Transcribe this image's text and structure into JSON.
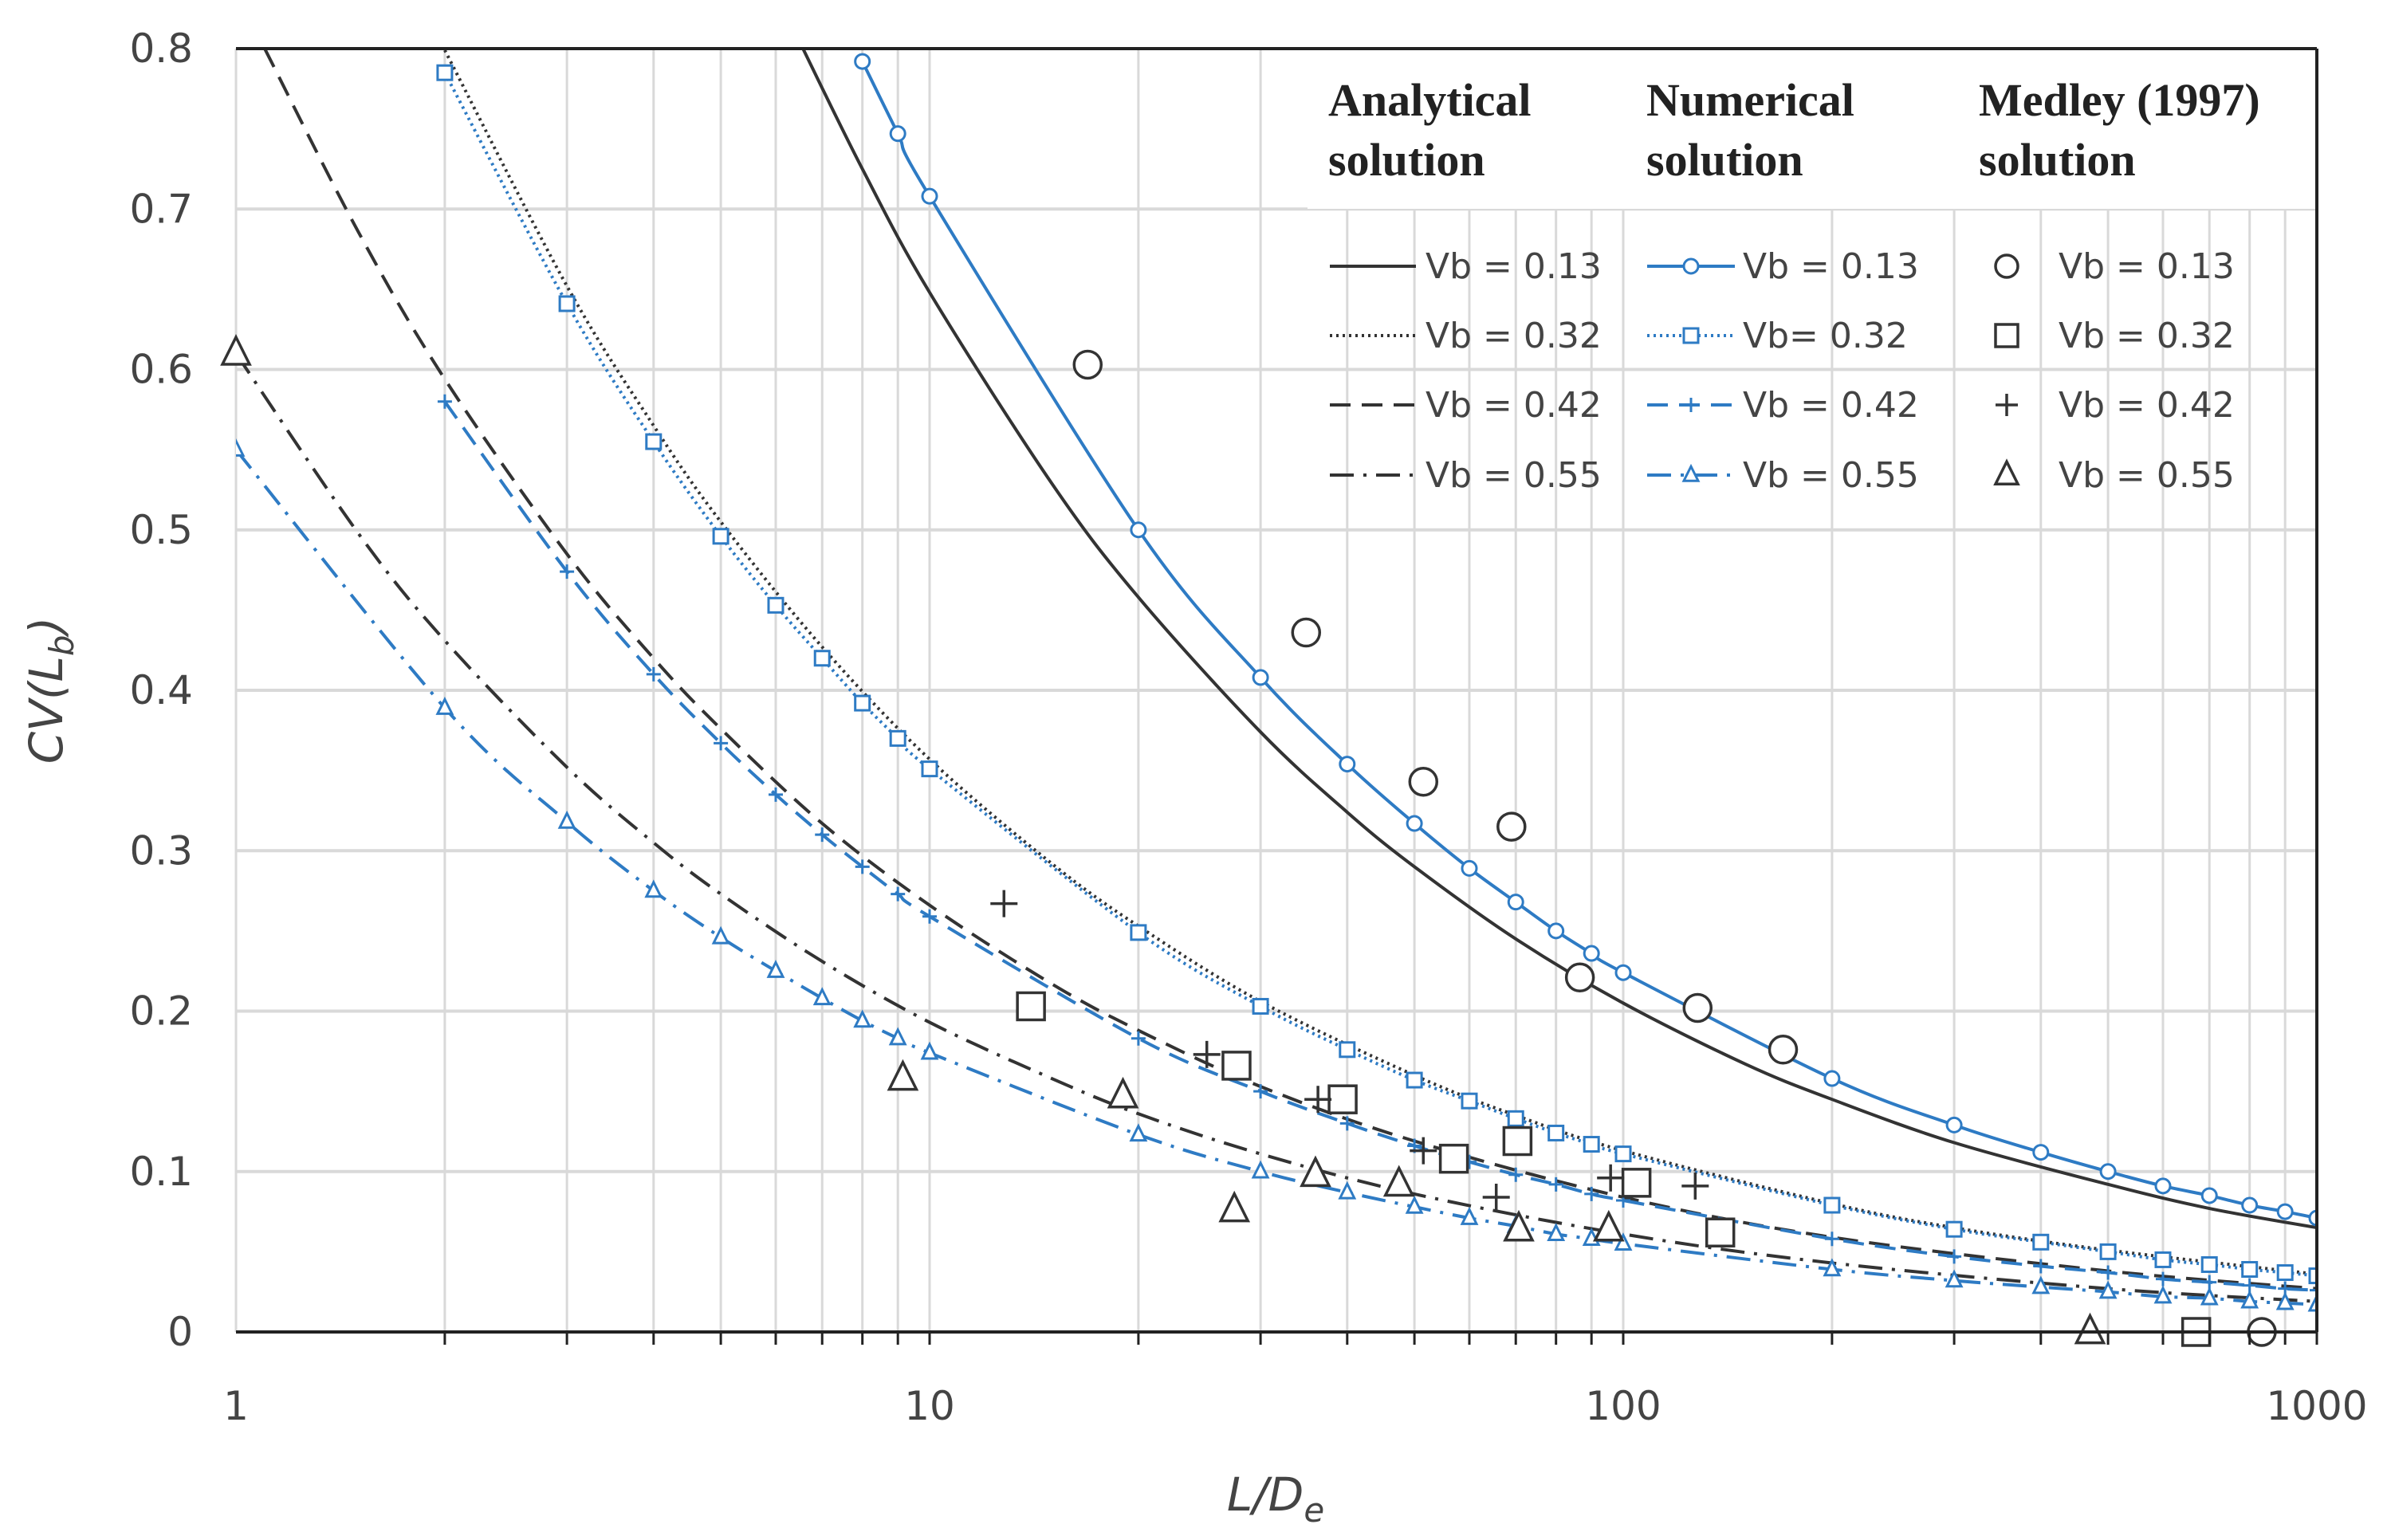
{
  "chart_data": {
    "type": "line",
    "xscale": "log",
    "xlim": [
      1,
      1000
    ],
    "ylim": [
      0,
      0.8
    ],
    "grid": true,
    "legend_position": "top-right",
    "xlabel_parts": {
      "main": "L/D",
      "sub": "e"
    },
    "ylabel_parts": {
      "main": "CV(L",
      "sub": "b",
      "close": ")"
    },
    "xticks": [
      {
        "v": 1,
        "label": "1"
      },
      {
        "v": 10,
        "label": "10"
      },
      {
        "v": 100,
        "label": "100"
      },
      {
        "v": 1000,
        "label": "1000"
      }
    ],
    "yticks": [
      {
        "v": 0,
        "label": "0"
      },
      {
        "v": 0.1,
        "label": "0.1"
      },
      {
        "v": 0.2,
        "label": "0.2"
      },
      {
        "v": 0.3,
        "label": "0.3"
      },
      {
        "v": 0.4,
        "label": "0.4"
      },
      {
        "v": 0.5,
        "label": "0.5"
      },
      {
        "v": 0.6,
        "label": "0.6"
      },
      {
        "v": 0.7,
        "label": "0.7"
      },
      {
        "v": 0.8,
        "label": "0.8"
      }
    ],
    "colors": {
      "analytical": "#333333",
      "numerical": "#2e7bc4",
      "medley": "#333333"
    },
    "legend_groups": [
      {
        "title_line1": "Analytical",
        "title_line2": "solution"
      },
      {
        "title_line1": "Numerical",
        "title_line2": "solution"
      },
      {
        "title_line1": "Medley (1997)",
        "title_line2": "solution"
      }
    ],
    "analytical": [
      {
        "name": "Vb = 0.13",
        "dash": "solid",
        "x": [
          6.5,
          8,
          10,
          15,
          20,
          30,
          40,
          50,
          70,
          100,
          150,
          200,
          300,
          500,
          700,
          1000
        ],
        "y": [
          0.804,
          0.725,
          0.648,
          0.529,
          0.458,
          0.374,
          0.324,
          0.29,
          0.245,
          0.205,
          0.167,
          0.145,
          0.118,
          0.092,
          0.077,
          0.065
        ]
      },
      {
        "name": "Vb = 0.32",
        "dash": "dotted",
        "x": [
          2,
          3,
          4,
          5,
          7,
          10,
          15,
          20,
          30,
          50,
          70,
          100,
          200,
          300,
          500,
          1000
        ],
        "y": [
          0.799,
          0.652,
          0.565,
          0.505,
          0.427,
          0.357,
          0.292,
          0.253,
          0.206,
          0.16,
          0.135,
          0.113,
          0.08,
          0.065,
          0.051,
          0.036
        ]
      },
      {
        "name": "Vb = 0.42",
        "dash": "dashed",
        "x": [
          1.1,
          1.5,
          2,
          3,
          4,
          5,
          7,
          10,
          15,
          20,
          30,
          50,
          100,
          200,
          500,
          1000
        ],
        "y": [
          0.8,
          0.686,
          0.594,
          0.485,
          0.42,
          0.376,
          0.317,
          0.266,
          0.217,
          0.188,
          0.153,
          0.119,
          0.084,
          0.059,
          0.038,
          0.027
        ]
      },
      {
        "name": "Vb = 0.55",
        "dash": "dashdot",
        "x": [
          1,
          1.5,
          2,
          3,
          4,
          5,
          7,
          10,
          15,
          20,
          30,
          50,
          100,
          200,
          500,
          1000
        ],
        "y": [
          0.61,
          0.498,
          0.431,
          0.352,
          0.305,
          0.273,
          0.231,
          0.193,
          0.158,
          0.136,
          0.111,
          0.086,
          0.061,
          0.043,
          0.027,
          0.019
        ]
      }
    ],
    "numerical": [
      {
        "name": "Vb = 0.13",
        "label": "Vb = 0.13",
        "marker": "circle",
        "dash": "solid",
        "x": [
          8,
          9,
          10,
          20,
          30,
          40,
          50,
          60,
          70,
          80,
          90,
          100,
          200,
          300,
          400,
          500,
          600,
          700,
          800,
          900,
          1000
        ],
        "y": [
          0.792,
          0.747,
          0.708,
          0.5,
          0.408,
          0.354,
          0.317,
          0.289,
          0.268,
          0.25,
          0.236,
          0.224,
          0.158,
          0.129,
          0.112,
          0.1,
          0.091,
          0.085,
          0.079,
          0.075,
          0.071
        ]
      },
      {
        "name": "Vb = 0.32",
        "label": "Vb= 0.32",
        "marker": "square",
        "dash": "dotted",
        "x": [
          2,
          3,
          4,
          5,
          6,
          7,
          8,
          9,
          10,
          20,
          30,
          40,
          50,
          60,
          70,
          80,
          90,
          100,
          200,
          300,
          400,
          500,
          600,
          700,
          800,
          900,
          1000
        ],
        "y": [
          0.785,
          0.641,
          0.555,
          0.496,
          0.453,
          0.42,
          0.392,
          0.37,
          0.351,
          0.249,
          0.203,
          0.176,
          0.157,
          0.144,
          0.133,
          0.124,
          0.117,
          0.111,
          0.079,
          0.064,
          0.056,
          0.05,
          0.045,
          0.042,
          0.039,
          0.037,
          0.035
        ]
      },
      {
        "name": "Vb = 0.42",
        "label": "Vb = 0.42",
        "marker": "plus",
        "dash": "dashed",
        "x": [
          2,
          3,
          4,
          5,
          6,
          7,
          8,
          9,
          10,
          20,
          30,
          40,
          50,
          60,
          70,
          80,
          90,
          100,
          200,
          300,
          400,
          500,
          600,
          700,
          800,
          900,
          1000
        ],
        "y": [
          0.58,
          0.474,
          0.41,
          0.367,
          0.335,
          0.31,
          0.29,
          0.273,
          0.259,
          0.183,
          0.15,
          0.13,
          0.116,
          0.106,
          0.098,
          0.092,
          0.086,
          0.082,
          0.058,
          0.047,
          0.041,
          0.037,
          0.033,
          0.031,
          0.029,
          0.027,
          0.026
        ]
      },
      {
        "name": "Vb = 0.55",
        "label": "Vb = 0.55",
        "marker": "triangle",
        "dash": "dashdot",
        "x": [
          1,
          2,
          3,
          4,
          5,
          6,
          7,
          8,
          9,
          10,
          20,
          30,
          40,
          50,
          60,
          70,
          80,
          90,
          100,
          200,
          300,
          400,
          500,
          600,
          700,
          800,
          900,
          1000
        ],
        "y": [
          0.55,
          0.389,
          0.318,
          0.275,
          0.246,
          0.225,
          0.208,
          0.194,
          0.183,
          0.174,
          0.123,
          0.1,
          0.087,
          0.078,
          0.071,
          0.066,
          0.061,
          0.058,
          0.055,
          0.039,
          0.032,
          0.028,
          0.025,
          0.022,
          0.021,
          0.019,
          0.018,
          0.017
        ]
      }
    ],
    "medley": [
      {
        "name": "Vb = 0.13",
        "marker": "circle",
        "x": [
          16.9,
          34.9,
          51.5,
          69,
          86.6,
          128,
          170,
          833
        ],
        "y": [
          0.603,
          0.436,
          0.343,
          0.315,
          0.221,
          0.202,
          0.176,
          0.0
        ]
      },
      {
        "name": "Vb = 0.32",
        "marker": "square",
        "x": [
          14,
          27.7,
          39.4,
          57,
          70.4,
          104.5,
          138,
          670
        ],
        "y": [
          0.203,
          0.166,
          0.145,
          0.108,
          0.119,
          0.093,
          0.062,
          0.0
        ]
      },
      {
        "name": "Vb = 0.42",
        "marker": "plus",
        "x": [
          12.8,
          25.1,
          36.3,
          51.5,
          65.6,
          95.9,
          127
        ],
        "y": [
          0.267,
          0.173,
          0.145,
          0.113,
          0.084,
          0.096,
          0.091
        ]
      },
      {
        "name": "Vb = 0.55",
        "marker": "triangle",
        "x": [
          1,
          9.15,
          19,
          27.5,
          36,
          47.5,
          70.7,
          95.3,
          471
        ],
        "y": [
          0.61,
          0.158,
          0.147,
          0.076,
          0.098,
          0.092,
          0.064,
          0.064,
          0.0
        ]
      }
    ]
  }
}
